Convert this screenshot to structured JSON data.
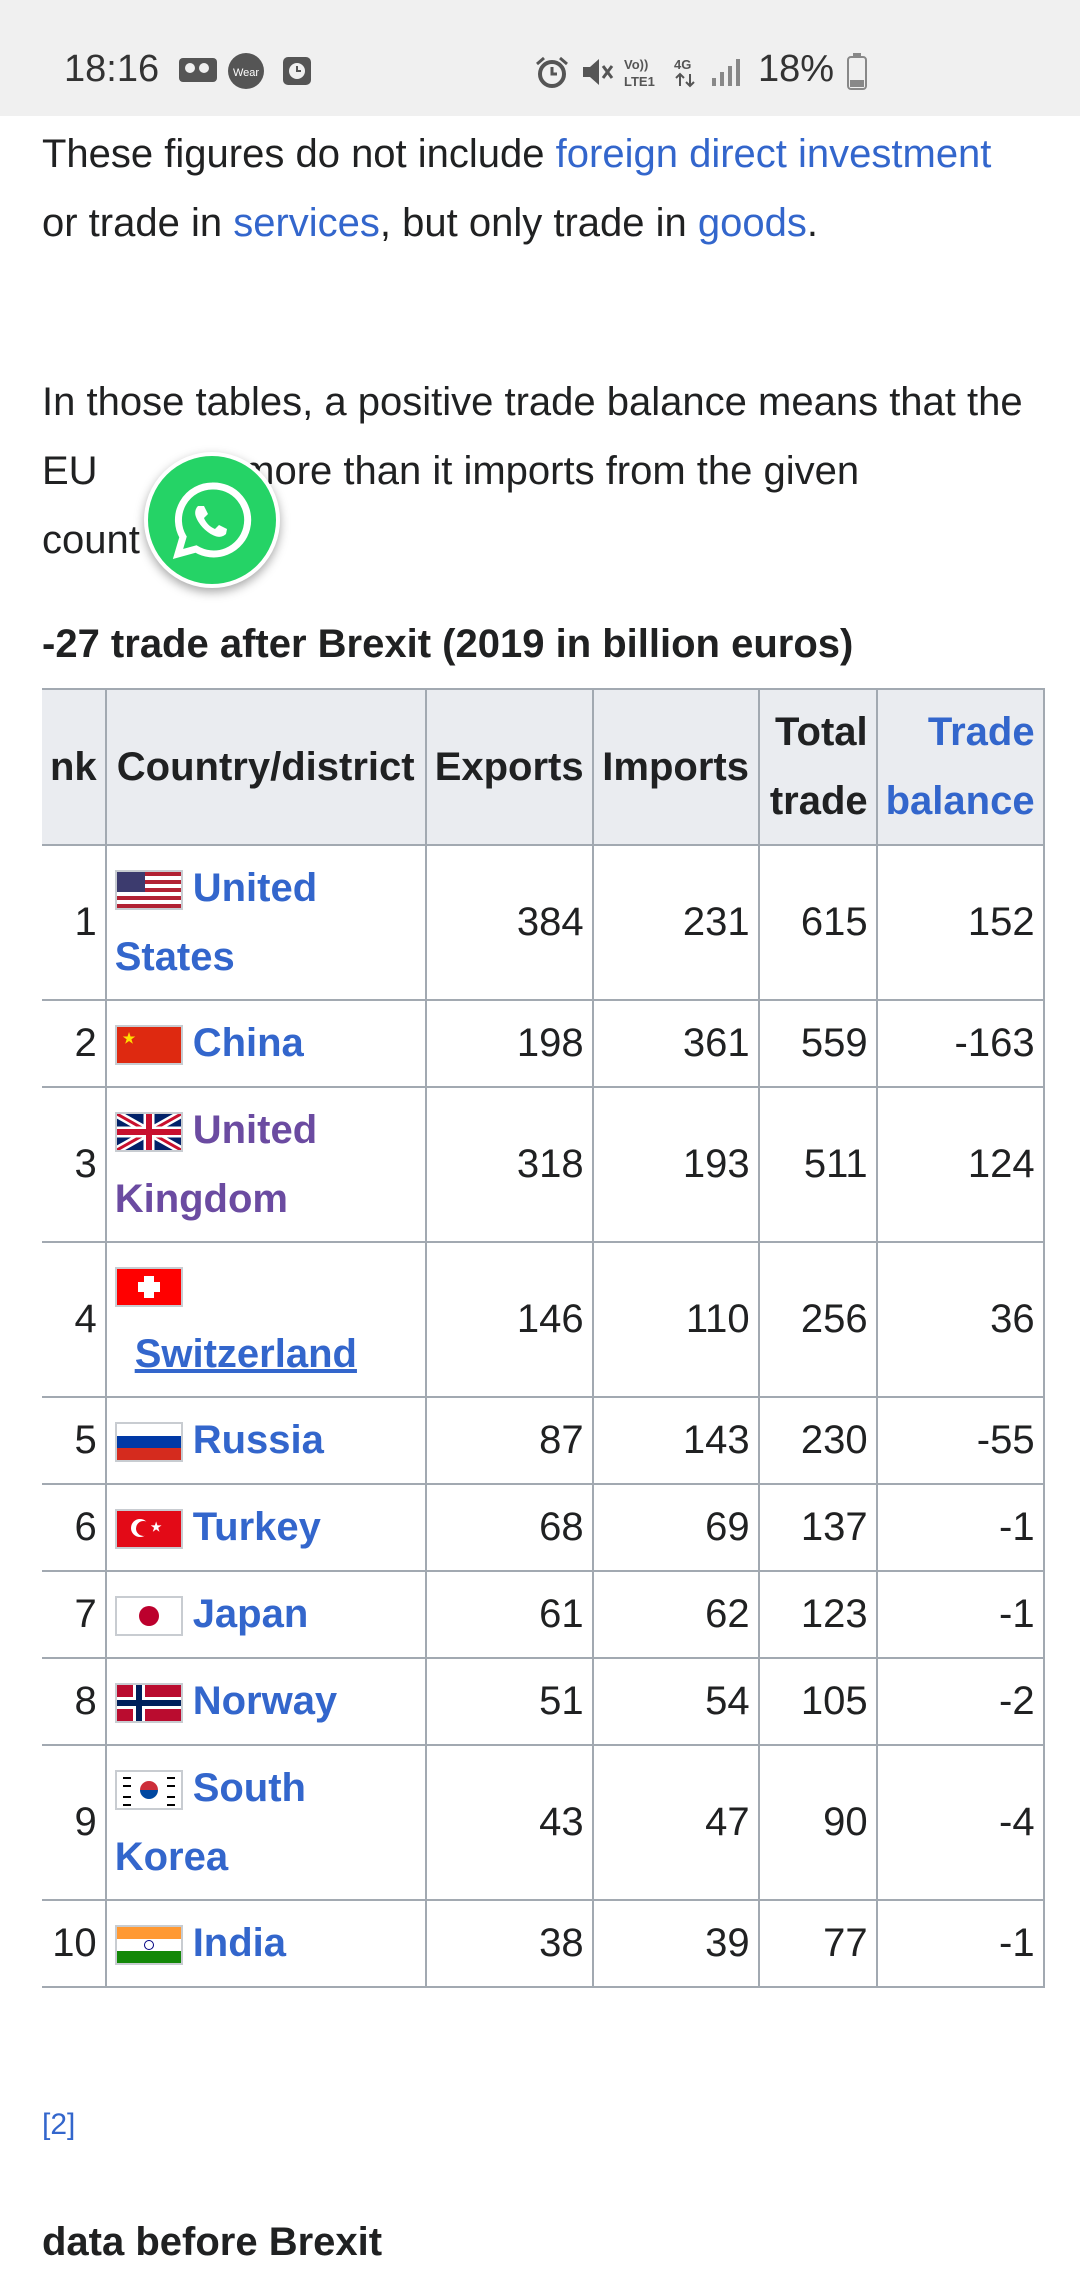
{
  "status_bar": {
    "time": "18:16",
    "battery": "18%",
    "icons": [
      "voicemail-icon",
      "wear-icon",
      "clock-app-icon",
      "alarm-icon",
      "mute-icon",
      "volte-icon",
      "4g-icon",
      "signal-icon",
      "battery-icon"
    ]
  },
  "article": {
    "para1": {
      "t1": "These figures do not include ",
      "l1": "foreign direct investment",
      "t2": " or trade in ",
      "l2": "services",
      "t3": ", but only trade in ",
      "l3": "goods",
      "t4": "."
    },
    "para2": {
      "t1": "In those tables, a positive trade balance means that the EU",
      "t2": "rts more than it imports from the given",
      "t3": "count"
    },
    "caption": "-27 trade after Brexit (2019 in billion euros)",
    "headers": {
      "rank": "nk",
      "country": "Country/district",
      "exports": "Exports",
      "imports": "Imports",
      "total": "Total trade",
      "balance": "Trade balance"
    },
    "rows": [
      {
        "rank": "1",
        "country": "United States",
        "exports": "384",
        "imports": "231",
        "total": "615",
        "balance": "152"
      },
      {
        "rank": "2",
        "country": "China",
        "exports": "198",
        "imports": "361",
        "total": "559",
        "balance": "-163"
      },
      {
        "rank": "3",
        "country": "United Kingdom",
        "exports": "318",
        "imports": "193",
        "total": "511",
        "balance": "124"
      },
      {
        "rank": "4",
        "country": "Switzerland",
        "exports": "146",
        "imports": "110",
        "total": "256",
        "balance": "36"
      },
      {
        "rank": "5",
        "country": "Russia",
        "exports": "87",
        "imports": "143",
        "total": "230",
        "balance": "-55"
      },
      {
        "rank": "6",
        "country": "Turkey",
        "exports": "68",
        "imports": "69",
        "total": "137",
        "balance": "-1"
      },
      {
        "rank": "7",
        "country": "Japan",
        "exports": "61",
        "imports": "62",
        "total": "123",
        "balance": "-1"
      },
      {
        "rank": "8",
        "country": "Norway",
        "exports": "51",
        "imports": "54",
        "total": "105",
        "balance": "-2"
      },
      {
        "rank": "9",
        "country": "South Korea",
        "exports": "43",
        "imports": "47",
        "total": "90",
        "balance": "-4"
      },
      {
        "rank": "10",
        "country": "India",
        "exports": "38",
        "imports": "39",
        "total": "77",
        "balance": "-1"
      }
    ],
    "reference": "[2]",
    "next_heading": "data before Brexit"
  },
  "colors": {
    "link": "#3366cc",
    "visited_link": "#6b4ba1",
    "header_bg": "#eaecf0",
    "border": "#a2a9b1",
    "whatsapp": "#25d366"
  }
}
